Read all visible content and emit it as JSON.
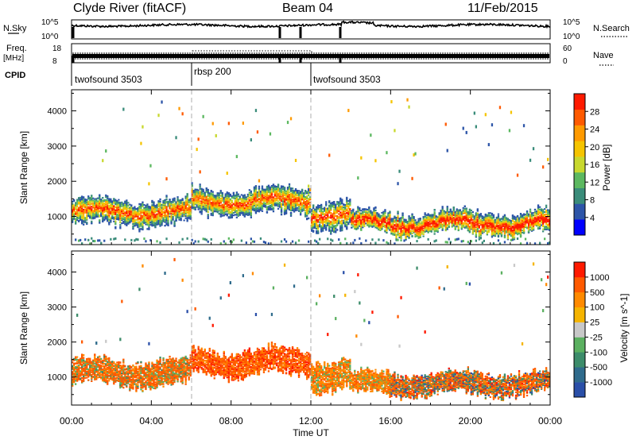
{
  "header": {
    "station": "Clyde River (fitACF)",
    "beam": "Beam 04",
    "date": "11/Feb/2015"
  },
  "top_panels": {
    "nsky_label": "N.Sky",
    "nsky_ticks": [
      "10^5",
      "10^0"
    ],
    "nsearch_label": "N.Search",
    "nsearch_ticks": [
      "10^5",
      "10^0"
    ],
    "freq_label": "Freq.",
    "freq_unit": "[MHz]",
    "freq_ticks": [
      "18",
      "8"
    ],
    "nave_label": "Nave",
    "nave_ticks": [
      "60",
      "0"
    ],
    "cpid_label": "CPID",
    "cpid_segments": [
      {
        "label": "twofsound 3503",
        "start_h": 0,
        "end_h": 6
      },
      {
        "label": "rbsp 200",
        "start_h": 6,
        "end_h": 12
      },
      {
        "label": "twofsound 3503",
        "start_h": 12,
        "end_h": 24
      }
    ]
  },
  "chart_data": [
    {
      "type": "heatmap",
      "title": "",
      "xlabel": "",
      "ylabel": "Slant Range [km]",
      "xlim_hours": [
        0,
        24
      ],
      "ylim_km": [
        200,
        4600
      ],
      "yticks": [
        "1000",
        "2000",
        "3000",
        "4000"
      ],
      "colorbar": {
        "label": "Power [dB]",
        "ticks": [
          "28",
          "24",
          "20",
          "16",
          "12",
          "8",
          "4"
        ],
        "colors": [
          "#0000ff",
          "#2d55a8",
          "#3a8c7a",
          "#5cb860",
          "#c8d82e",
          "#f5c400",
          "#ff9a00",
          "#ff5a00",
          "#ff1a00"
        ]
      },
      "scatter_bands_km": [
        {
          "start_h": 0,
          "end_h": 6,
          "center_km": 1150,
          "width_km": 700
        },
        {
          "start_h": 6,
          "end_h": 12,
          "center_km": 1450,
          "width_km": 700
        },
        {
          "start_h": 12,
          "end_h": 14,
          "center_km": 1100,
          "width_km": 800
        },
        {
          "start_h": 14,
          "end_h": 24,
          "center_km": 850,
          "width_km": 600
        }
      ]
    },
    {
      "type": "heatmap",
      "title": "",
      "xlabel": "Time UT",
      "ylabel": "Slant Range [km]",
      "xlim_hours": [
        0,
        24
      ],
      "ylim_km": [
        200,
        4600
      ],
      "xticks": [
        "00:00",
        "04:00",
        "08:00",
        "12:00",
        "16:00",
        "20:00",
        "00:00"
      ],
      "yticks": [
        "1000",
        "2000",
        "3000",
        "4000"
      ],
      "colorbar": {
        "label": "Velocity [m s^-1]",
        "ticks": [
          "1000",
          "500",
          "100",
          "25",
          "-25",
          "-100",
          "-500",
          "-1000"
        ],
        "colors": [
          "#2a4fa8",
          "#2f6b8c",
          "#3c8c6a",
          "#5bb060",
          "#c8c8c8",
          "#f5b400",
          "#ff8a00",
          "#ff5a00",
          "#ff1a00"
        ]
      }
    }
  ]
}
